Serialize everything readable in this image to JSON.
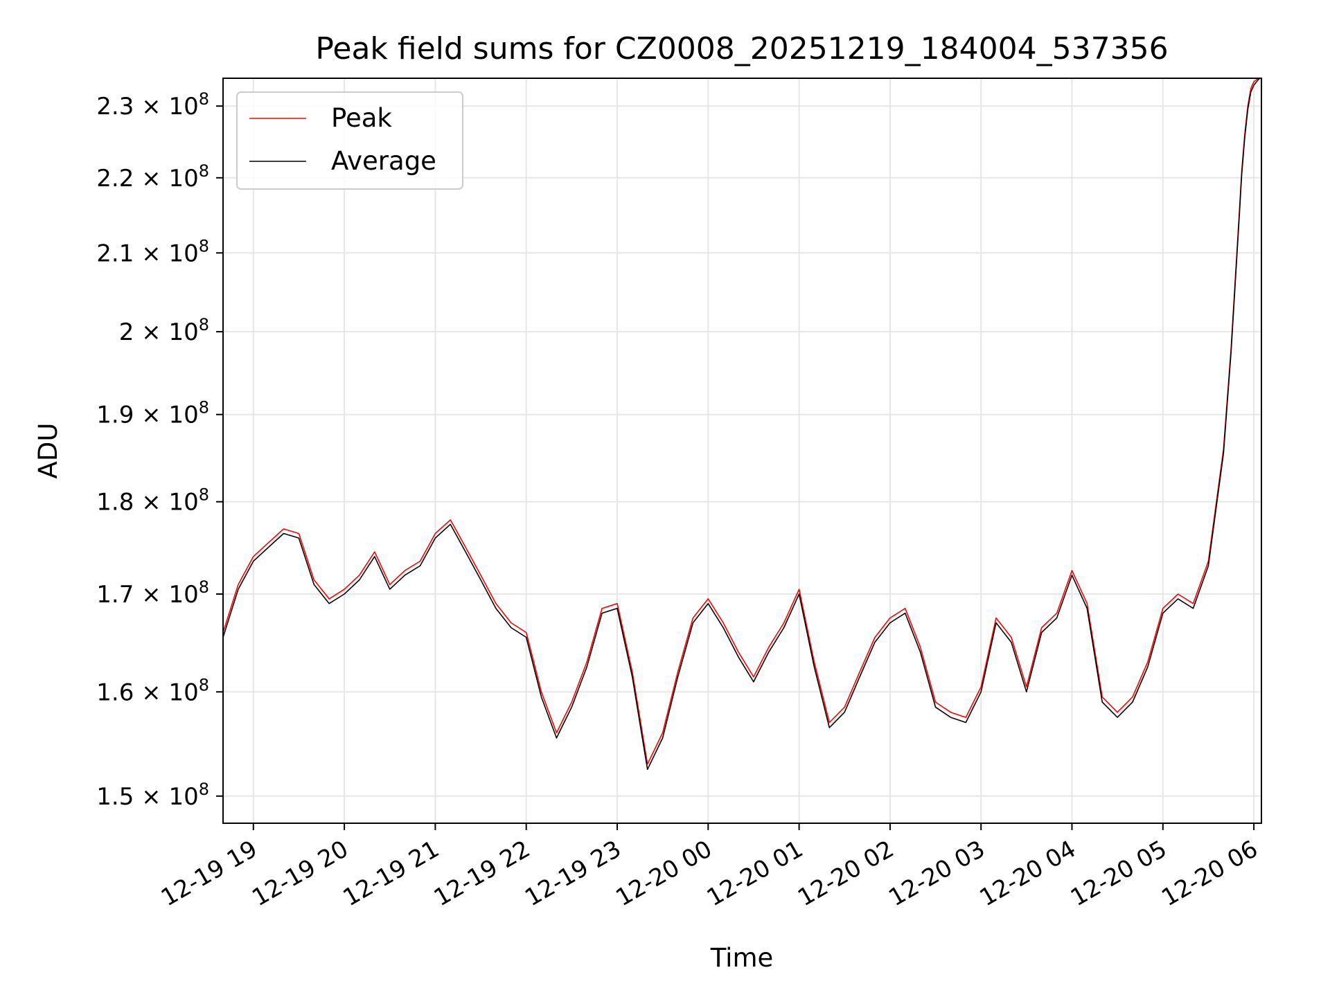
{
  "chart_data": {
    "type": "line",
    "title": "Peak field sums for CZ0008_20251219_184004_537356",
    "xlabel": "Time",
    "ylabel": "ADU",
    "y_scale": "log",
    "grid": true,
    "legend_position": "top-left",
    "xlim": [
      "2025-12-19T18:40",
      "2025-12-20T06:05"
    ],
    "ylim": [
      147500000,
      234000000
    ],
    "x_ticks": [
      {
        "value": "2025-12-19T19:00",
        "label": "12-19 19"
      },
      {
        "value": "2025-12-19T20:00",
        "label": "12-19 20"
      },
      {
        "value": "2025-12-19T21:00",
        "label": "12-19 21"
      },
      {
        "value": "2025-12-19T22:00",
        "label": "12-19 22"
      },
      {
        "value": "2025-12-19T23:00",
        "label": "12-19 23"
      },
      {
        "value": "2025-12-20T00:00",
        "label": "12-20 00"
      },
      {
        "value": "2025-12-20T01:00",
        "label": "12-20 01"
      },
      {
        "value": "2025-12-20T02:00",
        "label": "12-20 02"
      },
      {
        "value": "2025-12-20T03:00",
        "label": "12-20 03"
      },
      {
        "value": "2025-12-20T04:00",
        "label": "12-20 04"
      },
      {
        "value": "2025-12-20T05:00",
        "label": "12-20 05"
      },
      {
        "value": "2025-12-20T06:00",
        "label": "12-20 06"
      }
    ],
    "y_ticks": [
      {
        "value": 150000000,
        "mantissa": "1.5",
        "exponent": "8"
      },
      {
        "value": 160000000,
        "mantissa": "1.6",
        "exponent": "8"
      },
      {
        "value": 170000000,
        "mantissa": "1.7",
        "exponent": "8"
      },
      {
        "value": 180000000,
        "mantissa": "1.8",
        "exponent": "8"
      },
      {
        "value": 190000000,
        "mantissa": "1.9",
        "exponent": "8"
      },
      {
        "value": 200000000,
        "mantissa": "2",
        "exponent": "8"
      },
      {
        "value": 210000000,
        "mantissa": "2.1",
        "exponent": "8"
      },
      {
        "value": 220000000,
        "mantissa": "2.2",
        "exponent": "8"
      },
      {
        "value": 230000000,
        "mantissa": "2.3",
        "exponent": "8"
      }
    ],
    "series": [
      {
        "name": "Peak",
        "color": "#ff0000",
        "x": [
          "2025-12-19T18:40",
          "2025-12-19T18:50",
          "2025-12-19T19:00",
          "2025-12-19T19:10",
          "2025-12-19T19:20",
          "2025-12-19T19:30",
          "2025-12-19T19:40",
          "2025-12-19T19:50",
          "2025-12-19T20:00",
          "2025-12-19T20:10",
          "2025-12-19T20:20",
          "2025-12-19T20:30",
          "2025-12-19T20:40",
          "2025-12-19T20:50",
          "2025-12-19T21:00",
          "2025-12-19T21:10",
          "2025-12-19T21:20",
          "2025-12-19T21:30",
          "2025-12-19T21:40",
          "2025-12-19T21:50",
          "2025-12-19T22:00",
          "2025-12-19T22:10",
          "2025-12-19T22:20",
          "2025-12-19T22:30",
          "2025-12-19T22:40",
          "2025-12-19T22:50",
          "2025-12-19T23:00",
          "2025-12-19T23:10",
          "2025-12-19T23:20",
          "2025-12-19T23:30",
          "2025-12-19T23:40",
          "2025-12-19T23:50",
          "2025-12-20T00:00",
          "2025-12-20T00:10",
          "2025-12-20T00:20",
          "2025-12-20T00:30",
          "2025-12-20T00:40",
          "2025-12-20T00:50",
          "2025-12-20T01:00",
          "2025-12-20T01:10",
          "2025-12-20T01:20",
          "2025-12-20T01:30",
          "2025-12-20T01:40",
          "2025-12-20T01:50",
          "2025-12-20T02:00",
          "2025-12-20T02:10",
          "2025-12-20T02:20",
          "2025-12-20T02:30",
          "2025-12-20T02:40",
          "2025-12-20T02:50",
          "2025-12-20T03:00",
          "2025-12-20T03:10",
          "2025-12-20T03:20",
          "2025-12-20T03:30",
          "2025-12-20T03:40",
          "2025-12-20T03:50",
          "2025-12-20T04:00",
          "2025-12-20T04:10",
          "2025-12-20T04:20",
          "2025-12-20T04:30",
          "2025-12-20T04:40",
          "2025-12-20T04:50",
          "2025-12-20T05:00",
          "2025-12-20T05:10",
          "2025-12-20T05:20",
          "2025-12-20T05:30",
          "2025-12-20T05:40",
          "2025-12-20T05:45",
          "2025-12-20T05:50",
          "2025-12-20T05:52",
          "2025-12-20T05:54",
          "2025-12-20T05:56",
          "2025-12-20T05:58",
          "2025-12-20T06:00",
          "2025-12-20T06:03",
          "2025-12-20T06:05"
        ],
        "y": [
          166000000,
          171000000,
          174000000,
          175500000,
          177000000,
          176500000,
          171500000,
          169500000,
          170500000,
          172000000,
          174500000,
          171000000,
          172500000,
          173500000,
          176500000,
          178000000,
          175000000,
          172000000,
          169000000,
          167000000,
          166000000,
          160000000,
          156000000,
          159000000,
          163000000,
          168500000,
          169000000,
          162000000,
          153000000,
          156000000,
          162000000,
          167500000,
          169500000,
          167000000,
          164000000,
          161500000,
          164500000,
          167000000,
          170500000,
          163000000,
          157000000,
          158500000,
          162000000,
          165500000,
          167500000,
          168500000,
          164500000,
          159000000,
          158000000,
          157500000,
          160500000,
          167500000,
          165500000,
          160500000,
          166500000,
          168000000,
          172500000,
          169000000,
          159500000,
          158000000,
          159500000,
          163000000,
          168500000,
          170000000,
          169000000,
          173500000,
          186000000,
          198000000,
          214000000,
          221000000,
          226000000,
          230000000,
          232500000,
          233500000,
          234000000,
          234300000
        ]
      },
      {
        "name": "Average",
        "color": "#000000",
        "x": [
          "2025-12-19T18:40",
          "2025-12-19T18:50",
          "2025-12-19T19:00",
          "2025-12-19T19:10",
          "2025-12-19T19:20",
          "2025-12-19T19:30",
          "2025-12-19T19:40",
          "2025-12-19T19:50",
          "2025-12-19T20:00",
          "2025-12-19T20:10",
          "2025-12-19T20:20",
          "2025-12-19T20:30",
          "2025-12-19T20:40",
          "2025-12-19T20:50",
          "2025-12-19T21:00",
          "2025-12-19T21:10",
          "2025-12-19T21:20",
          "2025-12-19T21:30",
          "2025-12-19T21:40",
          "2025-12-19T21:50",
          "2025-12-19T22:00",
          "2025-12-19T22:10",
          "2025-12-19T22:20",
          "2025-12-19T22:30",
          "2025-12-19T22:40",
          "2025-12-19T22:50",
          "2025-12-19T23:00",
          "2025-12-19T23:10",
          "2025-12-19T23:20",
          "2025-12-19T23:30",
          "2025-12-19T23:40",
          "2025-12-19T23:50",
          "2025-12-20T00:00",
          "2025-12-20T00:10",
          "2025-12-20T00:20",
          "2025-12-20T00:30",
          "2025-12-20T00:40",
          "2025-12-20T00:50",
          "2025-12-20T01:00",
          "2025-12-20T01:10",
          "2025-12-20T01:20",
          "2025-12-20T01:30",
          "2025-12-20T01:40",
          "2025-12-20T01:50",
          "2025-12-20T02:00",
          "2025-12-20T02:10",
          "2025-12-20T02:20",
          "2025-12-20T02:30",
          "2025-12-20T02:40",
          "2025-12-20T02:50",
          "2025-12-20T03:00",
          "2025-12-20T03:10",
          "2025-12-20T03:20",
          "2025-12-20T03:30",
          "2025-12-20T03:40",
          "2025-12-20T03:50",
          "2025-12-20T04:00",
          "2025-12-20T04:10",
          "2025-12-20T04:20",
          "2025-12-20T04:30",
          "2025-12-20T04:40",
          "2025-12-20T04:50",
          "2025-12-20T05:00",
          "2025-12-20T05:10",
          "2025-12-20T05:20",
          "2025-12-20T05:30",
          "2025-12-20T05:40",
          "2025-12-20T05:45",
          "2025-12-20T05:50",
          "2025-12-20T05:52",
          "2025-12-20T05:54",
          "2025-12-20T05:56",
          "2025-12-20T05:58",
          "2025-12-20T06:00",
          "2025-12-20T06:03",
          "2025-12-20T06:05"
        ],
        "y": [
          165500000,
          170500000,
          173500000,
          175000000,
          176500000,
          176000000,
          171000000,
          169000000,
          170000000,
          171500000,
          174000000,
          170500000,
          172000000,
          173000000,
          176000000,
          177500000,
          174500000,
          171500000,
          168500000,
          166500000,
          165500000,
          159500000,
          155500000,
          158500000,
          162500000,
          168000000,
          168500000,
          161500000,
          152500000,
          155500000,
          161500000,
          167000000,
          169000000,
          166500000,
          163500000,
          161000000,
          164000000,
          166500000,
          170000000,
          162500000,
          156500000,
          158000000,
          161500000,
          165000000,
          167000000,
          168000000,
          164000000,
          158500000,
          157500000,
          157000000,
          160000000,
          167000000,
          165000000,
          160000000,
          166000000,
          167500000,
          172000000,
          168500000,
          159000000,
          157500000,
          159000000,
          162500000,
          168000000,
          169500000,
          168500000,
          173000000,
          185500000,
          197500000,
          213500000,
          220500000,
          225500000,
          229500000,
          232000000,
          233000000,
          233800000,
          234200000
        ]
      }
    ]
  }
}
